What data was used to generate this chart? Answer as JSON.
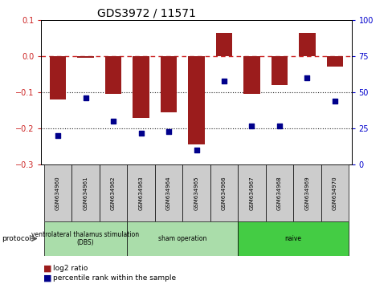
{
  "title": "GDS3972 / 11571",
  "samples": [
    "GSM634960",
    "GSM634961",
    "GSM634962",
    "GSM634963",
    "GSM634964",
    "GSM634965",
    "GSM634966",
    "GSM634967",
    "GSM634968",
    "GSM634969",
    "GSM634970"
  ],
  "log2_ratio": [
    -0.12,
    -0.005,
    -0.105,
    -0.17,
    -0.155,
    -0.245,
    0.065,
    -0.105,
    -0.08,
    0.065,
    -0.03
  ],
  "percentile_rank": [
    20,
    46,
    30,
    22,
    23,
    10,
    58,
    27,
    27,
    60,
    44
  ],
  "ylim_left": [
    -0.3,
    0.1
  ],
  "ylim_right": [
    0,
    100
  ],
  "bar_color": "#9B1C1C",
  "dot_color": "#00008B",
  "hline_color": "#CC2222",
  "dotted_line_color": "#222222",
  "group_ranges": [
    [
      0,
      3
    ],
    [
      3,
      7
    ],
    [
      7,
      11
    ]
  ],
  "group_labels": [
    "ventrolateral thalamus stimulation\n(DBS)",
    "sham operation",
    "naive"
  ],
  "group_colors": [
    "#AADDAA",
    "#AADDAA",
    "#44CC44"
  ],
  "sample_box_color": "#CCCCCC",
  "protocol_label": "protocol",
  "legend_log2": "log2 ratio",
  "legend_pct": "percentile rank within the sample",
  "left_tick_color": "#CC2222",
  "right_tick_color": "#0000CC",
  "tick_fontsize": 7,
  "title_fontsize": 10,
  "bar_width": 0.6
}
